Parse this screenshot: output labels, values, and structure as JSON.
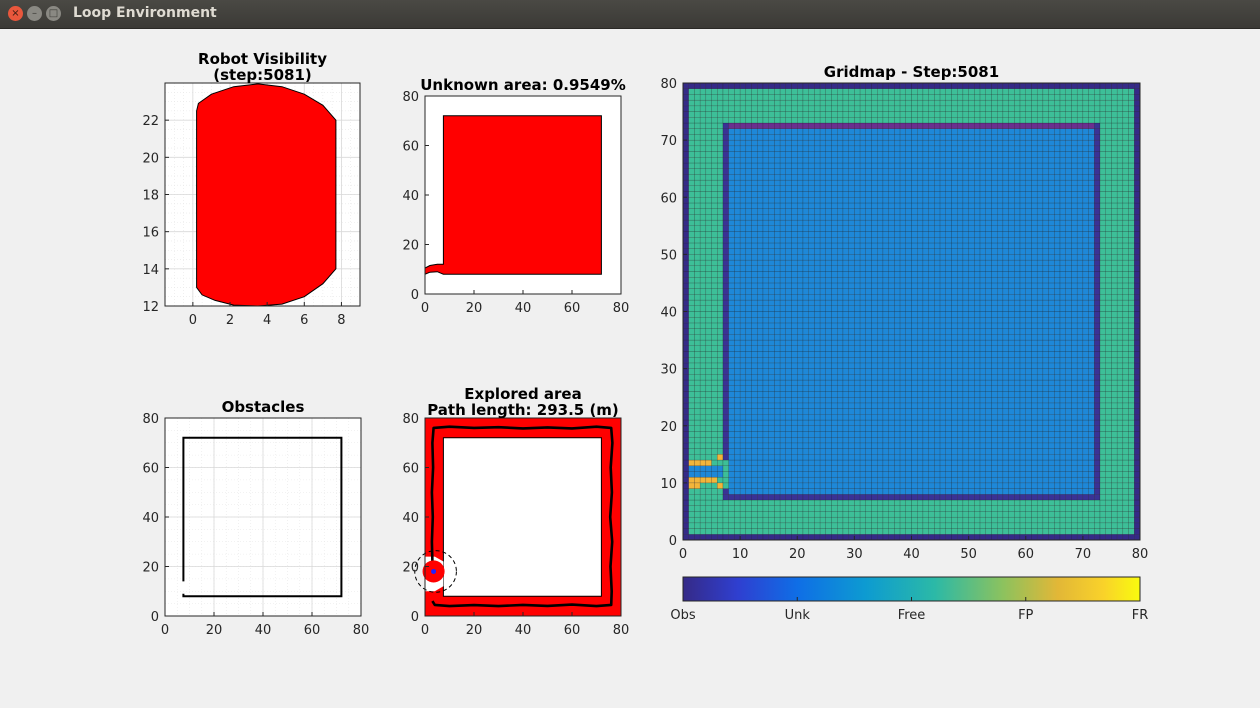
{
  "window": {
    "title": "Loop Environment",
    "close_glyph": "×",
    "minimize_glyph": "–",
    "maximize_glyph": "□"
  },
  "colors": {
    "fill_red": "#ff0000",
    "window_bg": "#f0f0f0",
    "obs": "#352a87",
    "unk": "#1e88d8",
    "free": "#3dbf98",
    "fp": "#f2b53a",
    "fr": "#f9fb0e"
  },
  "chart_data": [
    {
      "id": "robot-visibility",
      "type": "area",
      "title": "Robot Visibility",
      "subtitle": "(step:5081)",
      "xlim": [
        -1.5,
        9
      ],
      "ylim": [
        12,
        24
      ],
      "x_ticks": [
        0,
        2,
        4,
        6,
        8
      ],
      "y_ticks": [
        12,
        14,
        16,
        18,
        20,
        22
      ],
      "grid": true,
      "region": [
        [
          0.2,
          13
        ],
        [
          0.5,
          12.6
        ],
        [
          1.2,
          12.3
        ],
        [
          2.2,
          12.05
        ],
        [
          3.5,
          12
        ],
        [
          4.8,
          12.1
        ],
        [
          6,
          12.5
        ],
        [
          7.0,
          13.2
        ],
        [
          7.7,
          14
        ],
        [
          7.7,
          22
        ],
        [
          7.0,
          22.8
        ],
        [
          6,
          23.4
        ],
        [
          4.8,
          23.8
        ],
        [
          3.5,
          23.95
        ],
        [
          2.2,
          23.8
        ],
        [
          1.0,
          23.4
        ],
        [
          0.3,
          22.9
        ],
        [
          0.2,
          22.5
        ]
      ]
    },
    {
      "id": "unknown-area",
      "type": "area",
      "title": "Unknown area: 0.9549%",
      "xlim": [
        0,
        80
      ],
      "ylim": [
        0,
        80
      ],
      "x_ticks": [
        0,
        20,
        40,
        60,
        80
      ],
      "y_ticks": [
        0,
        20,
        40,
        60,
        80
      ],
      "grid": false,
      "region": [
        [
          7.5,
          8
        ],
        [
          72,
          8
        ],
        [
          72,
          72
        ],
        [
          7.5,
          72
        ],
        [
          7.5,
          12
        ],
        [
          5,
          12
        ],
        [
          2,
          11.5
        ],
        [
          0,
          10.5
        ],
        [
          0,
          8
        ],
        [
          2,
          8.8
        ],
        [
          5,
          9
        ]
      ]
    },
    {
      "id": "obstacles",
      "type": "line",
      "title": "Obstacles",
      "xlim": [
        0,
        80
      ],
      "ylim": [
        0,
        80
      ],
      "x_ticks": [
        0,
        20,
        40,
        60,
        80
      ],
      "y_ticks": [
        0,
        20,
        40,
        60,
        80
      ],
      "grid": true,
      "walls": [
        [
          [
            7.5,
            14
          ],
          [
            7.5,
            72
          ],
          [
            72,
            72
          ],
          [
            72,
            8
          ],
          [
            7.5,
            8
          ],
          [
            7.5,
            9
          ]
        ]
      ]
    },
    {
      "id": "explored-area",
      "type": "area",
      "title": "Explored area",
      "subtitle": "Path length: 293.5 (m)",
      "xlim": [
        0,
        80
      ],
      "ylim": [
        0,
        80
      ],
      "x_ticks": [
        0,
        20,
        40,
        60,
        80
      ],
      "y_ticks": [
        0,
        20,
        40,
        60,
        80
      ],
      "grid": true,
      "explored_outer": [
        [
          0,
          0
        ],
        [
          80,
          0
        ],
        [
          80,
          80
        ],
        [
          0,
          80
        ]
      ],
      "unexplored_inner": [
        [
          7.5,
          8
        ],
        [
          72,
          8
        ],
        [
          72,
          72
        ],
        [
          7.5,
          72
        ]
      ],
      "gap": [
        [
          0,
          10
        ],
        [
          4,
          10
        ],
        [
          7.5,
          12
        ],
        [
          7.5,
          22
        ],
        [
          4,
          24
        ],
        [
          0,
          24
        ]
      ],
      "path": [
        [
          3.5,
          17
        ],
        [
          3,
          22
        ],
        [
          2.8,
          30
        ],
        [
          3.2,
          40
        ],
        [
          2.8,
          50
        ],
        [
          3.3,
          60
        ],
        [
          3,
          70
        ],
        [
          3.5,
          76
        ],
        [
          10,
          76.5
        ],
        [
          20,
          76
        ],
        [
          30,
          76.3
        ],
        [
          40,
          75.8
        ],
        [
          50,
          76.2
        ],
        [
          60,
          75.8
        ],
        [
          70,
          76.5
        ],
        [
          76,
          76
        ],
        [
          76.5,
          70
        ],
        [
          75.8,
          60
        ],
        [
          76.3,
          50
        ],
        [
          75.6,
          40
        ],
        [
          76.4,
          30
        ],
        [
          75.7,
          20
        ],
        [
          76.2,
          10
        ],
        [
          76,
          4.5
        ],
        [
          70,
          4
        ],
        [
          60,
          4.6
        ],
        [
          50,
          4.1
        ],
        [
          40,
          4.5
        ],
        [
          30,
          4
        ],
        [
          20,
          4.4
        ],
        [
          10,
          4
        ],
        [
          4,
          4.5
        ],
        [
          3,
          6
        ]
      ],
      "robot": [
        3.5,
        18
      ],
      "sensor_radius": 5
    },
    {
      "id": "gridmap",
      "type": "heatmap",
      "title": "Gridmap - Step:5081",
      "xlim": [
        0,
        80
      ],
      "ylim": [
        0,
        80
      ],
      "x_ticks": [
        0,
        10,
        20,
        30,
        40,
        50,
        60,
        70,
        80
      ],
      "y_ticks": [
        0,
        10,
        20,
        30,
        40,
        50,
        60,
        70,
        80
      ],
      "categories": [
        "Obs",
        "Unk",
        "Free",
        "FP",
        "FR"
      ],
      "fp_cells": [
        [
          1,
          13
        ],
        [
          2,
          13
        ],
        [
          3,
          13
        ],
        [
          4,
          13
        ],
        [
          6,
          14
        ],
        [
          1,
          10
        ],
        [
          2,
          10
        ],
        [
          3,
          10
        ],
        [
          4,
          10
        ],
        [
          5,
          10
        ],
        [
          6,
          9
        ],
        [
          1,
          9
        ],
        [
          2,
          9
        ]
      ]
    }
  ]
}
